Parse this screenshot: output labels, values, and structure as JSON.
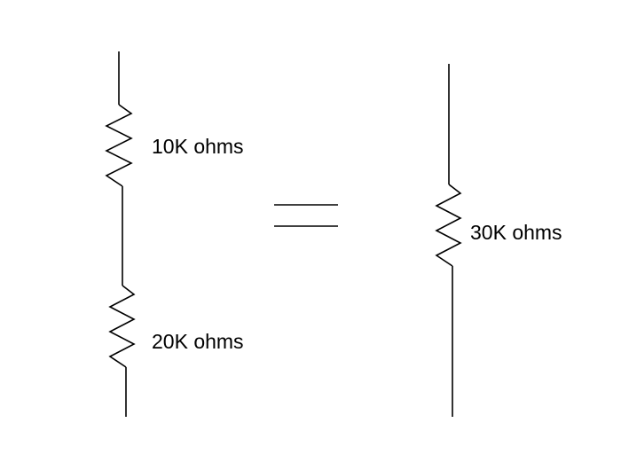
{
  "diagram": {
    "series_circuit": {
      "resistors": [
        {
          "label": "10K ohms"
        },
        {
          "label": "20K ohms"
        }
      ]
    },
    "equals_sign": "=",
    "equivalent_circuit": {
      "resistors": [
        {
          "label": "30K ohms"
        }
      ]
    },
    "colors": {
      "stroke": "#000000",
      "background": "#ffffff"
    }
  }
}
